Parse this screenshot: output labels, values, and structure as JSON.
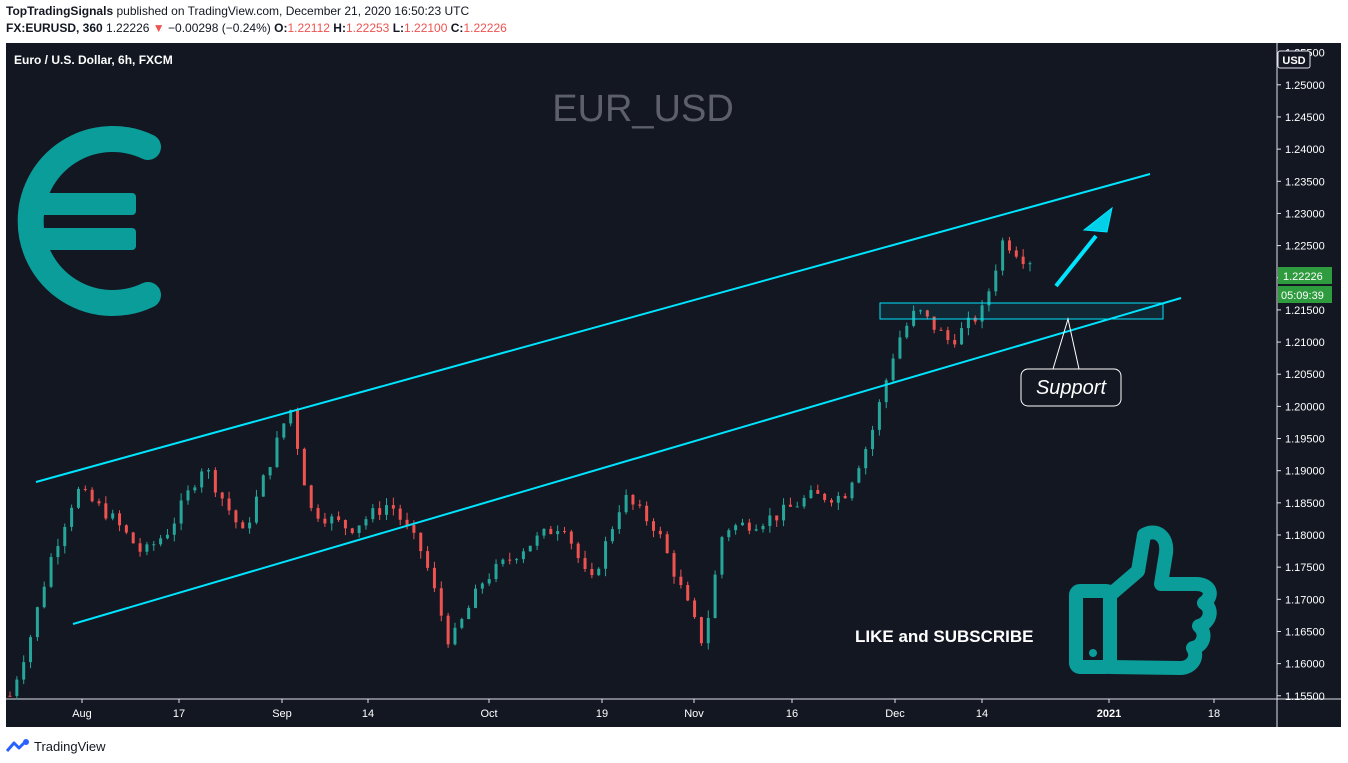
{
  "header": {
    "publisher": "TopTradingSignals",
    "published_text": "published on TradingView.com, December 21, 2020 16:50:23 UTC",
    "symbol": "FX:EURUSD, 360",
    "last": "1.22226",
    "change_arrow": "▼",
    "change": "−0.00298 (−0.24%)",
    "o_label": "O:",
    "o": "1.22112",
    "h_label": "H:",
    "h": "1.22253",
    "l_label": "L:",
    "l": "1.22100",
    "c_label": "C:",
    "c": "1.22226"
  },
  "chart": {
    "instrument_label": "Euro / U.S. Dollar, 6h, FXCM",
    "watermark": "EUR_USD",
    "currency": "USD",
    "price_tag": "1.22226",
    "countdown_tag": "05:09:39",
    "support_label": "Support",
    "cta_text": "LIKE and SUBSCRIBE",
    "colors": {
      "background": "#131722",
      "up": "#26a69a",
      "down": "#ef5350",
      "channel": "#00e5ff",
      "euro_icon": "#0a9d9a",
      "price_tag": "#2e9c3e"
    },
    "icons": [
      "euro-icon",
      "thumbs-up-icon",
      "up-arrow-icon"
    ]
  },
  "chart_data": {
    "type": "candlestick",
    "symbol": "FX:EURUSD",
    "timeframe": "6h",
    "x_ticks": [
      "Aug",
      "17",
      "Sep",
      "14",
      "Oct",
      "19",
      "Nov",
      "16",
      "Dec",
      "14",
      "2021",
      "18"
    ],
    "y_ticks": [
      "1.25500",
      "1.25000",
      "1.24500",
      "1.24000",
      "1.23500",
      "1.23000",
      "1.22500",
      "1.22000",
      "1.21500",
      "1.21000",
      "1.20500",
      "1.20000",
      "1.19500",
      "1.19000",
      "1.18500",
      "1.18000",
      "1.17500",
      "1.17000",
      "1.16500",
      "1.16000",
      "1.15500"
    ],
    "ylim": [
      1.1545,
      1.2565
    ],
    "last_price": 1.22226,
    "approx_close_path": [
      [
        "2020-07-21",
        1.155
      ],
      [
        "2020-07-24",
        1.164
      ],
      [
        "2020-07-27",
        1.176
      ],
      [
        "2020-07-31",
        1.187
      ],
      [
        "2020-08-05",
        1.183
      ],
      [
        "2020-08-10",
        1.177
      ],
      [
        "2020-08-14",
        1.181
      ],
      [
        "2020-08-19",
        1.191
      ],
      [
        "2020-08-25",
        1.18
      ],
      [
        "2020-09-01",
        1.2
      ],
      [
        "2020-09-04",
        1.184
      ],
      [
        "2020-09-10",
        1.181
      ],
      [
        "2020-09-16",
        1.185
      ],
      [
        "2020-09-21",
        1.177
      ],
      [
        "2020-09-25",
        1.163
      ],
      [
        "2020-09-30",
        1.173
      ],
      [
        "2020-10-06",
        1.178
      ],
      [
        "2020-10-12",
        1.182
      ],
      [
        "2020-10-16",
        1.172
      ],
      [
        "2020-10-21",
        1.186
      ],
      [
        "2020-10-26",
        1.181
      ],
      [
        "2020-11-02",
        1.163
      ],
      [
        "2020-11-05",
        1.181
      ],
      [
        "2020-11-10",
        1.182
      ],
      [
        "2020-11-13",
        1.183
      ],
      [
        "2020-11-18",
        1.186
      ],
      [
        "2020-11-23",
        1.186
      ],
      [
        "2020-11-27",
        1.195
      ],
      [
        "2020-12-01",
        1.21
      ],
      [
        "2020-12-04",
        1.215
      ],
      [
        "2020-12-09",
        1.21
      ],
      [
        "2020-12-14",
        1.215
      ],
      [
        "2020-12-17",
        1.226
      ],
      [
        "2020-12-21",
        1.22226
      ]
    ]
  }
}
